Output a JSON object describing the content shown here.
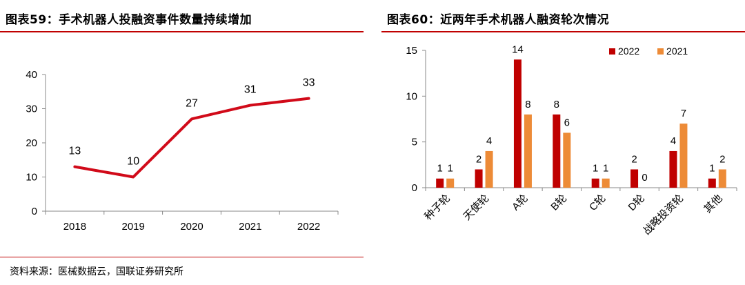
{
  "colors": {
    "accent": "#c00000",
    "line": "#d10a19",
    "bar_2022": "#c00000",
    "bar_2021": "#ed8b37",
    "axis": "#888888"
  },
  "left": {
    "title": "图表59：手术机器人投融资事件数量持续增加",
    "source": "资料来源：医械数据云，国联证券研究所"
  },
  "right": {
    "title": "图表60：近两年手术机器人融资轮次情况",
    "source": "资料来源：医械数据云，国联证券研究所"
  },
  "chart_data": [
    {
      "type": "line",
      "title": "图表59：手术机器人投融资事件数量持续增加",
      "categories": [
        "2018",
        "2019",
        "2020",
        "2021",
        "2022"
      ],
      "series": [
        {
          "name": "投融资事件数量",
          "values": [
            13,
            10,
            27,
            31,
            33
          ]
        }
      ],
      "ylim": [
        0,
        40
      ],
      "yticks": [
        0,
        10,
        20,
        30,
        40
      ],
      "grid": false
    },
    {
      "type": "bar",
      "title": "图表60：近两年手术机器人融资轮次情况",
      "categories": [
        "种子轮",
        "天使轮",
        "A轮",
        "B轮",
        "C轮",
        "D轮",
        "战略投资轮",
        "其他"
      ],
      "series": [
        {
          "name": "2022",
          "values": [
            1,
            2,
            14,
            8,
            1,
            2,
            4,
            1
          ]
        },
        {
          "name": "2021",
          "values": [
            1,
            4,
            8,
            6,
            1,
            0,
            7,
            2
          ]
        }
      ],
      "ylim": [
        0,
        15
      ],
      "yticks": [
        0,
        5,
        10,
        15
      ],
      "legend": "top-right",
      "grid": false
    }
  ]
}
